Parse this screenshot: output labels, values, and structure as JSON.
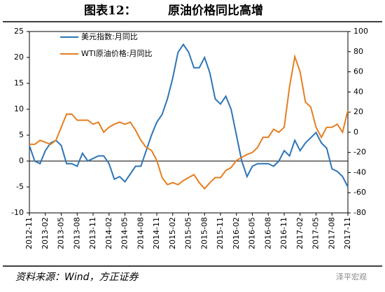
{
  "chart_data": {
    "type": "line",
    "title_prefix": "图表12：",
    "title": "原油价格同比高增",
    "source": "资料来源：Wind，方正证券",
    "watermark": "泽平宏观",
    "categories": [
      "2012-11",
      null,
      null,
      "2013-02",
      null,
      null,
      "2013-05",
      null,
      null,
      "2013-08",
      null,
      null,
      "2013-11",
      null,
      null,
      "2014-02",
      null,
      null,
      "2014-05",
      null,
      null,
      "2014-08",
      null,
      null,
      "2014-11",
      null,
      null,
      "2015-02",
      null,
      null,
      "2015-05",
      null,
      null,
      "2015-08",
      null,
      null,
      "2015-11",
      null,
      null,
      "2016-02",
      null,
      null,
      "2016-05",
      null,
      null,
      "2016-08",
      null,
      null,
      "2016-11",
      null,
      null,
      "2017-02",
      null,
      null,
      "2017-05",
      null,
      null,
      "2017-08",
      null,
      null,
      "2017-11"
    ],
    "series": [
      {
        "name": "美元指数:月同比",
        "color": "#2e75b6",
        "axis": "y",
        "values": [
          3,
          0,
          -0.5,
          2,
          3.5,
          4,
          3,
          -0.5,
          -0.5,
          -1,
          1.5,
          0,
          0.5,
          1,
          1,
          -0.5,
          -3.5,
          -3,
          -4,
          -2.5,
          -1,
          -1,
          2,
          5,
          7.5,
          9,
          12,
          16,
          21,
          22.5,
          21,
          18,
          18,
          20,
          17,
          12,
          11,
          12.5,
          10,
          5,
          0,
          -3,
          -1,
          -0.5,
          -0.5,
          -0.5,
          -1,
          0,
          2,
          1,
          4,
          2,
          3.5,
          4.5,
          5.5,
          3.5,
          2.5,
          -1.5,
          -2,
          -3,
          -5
        ]
      },
      {
        "name": "WTI原油价格:月同比",
        "color": "#e67e22",
        "axis": "y2",
        "values": [
          -12,
          -12,
          -8,
          -10,
          -12,
          -8,
          5,
          18,
          18,
          12,
          12,
          12,
          8,
          10,
          0,
          5,
          8,
          10,
          8,
          10,
          2,
          -8,
          -15,
          -18,
          -28,
          -45,
          -52,
          -50,
          -52,
          -48,
          -45,
          -42,
          -50,
          -56,
          -50,
          -45,
          -45,
          -38,
          -35,
          -28,
          -25,
          -22,
          -20,
          -15,
          -5,
          -5,
          3,
          0,
          5,
          45,
          75,
          60,
          30,
          25,
          5,
          -5,
          5,
          5,
          8,
          0,
          22
        ]
      }
    ],
    "ylim": [
      -10,
      25
    ],
    "yticks": [
      -10,
      -5,
      0,
      5,
      10,
      15,
      20,
      25
    ],
    "y2lim": [
      -80,
      100
    ],
    "y2ticks": [
      -80,
      -60,
      -40,
      -20,
      0,
      20,
      40,
      60,
      80,
      100
    ],
    "legend": "top-left"
  }
}
